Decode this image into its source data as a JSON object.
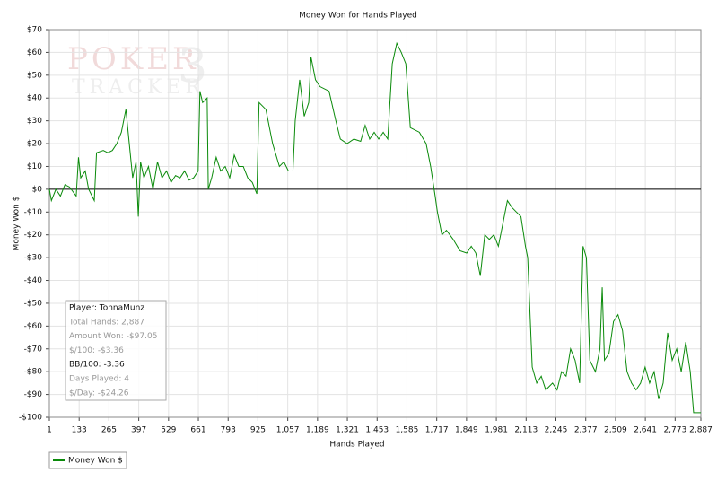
{
  "chart_data": {
    "type": "line",
    "title": "Money Won for Hands Played",
    "x_label": "Hands Played",
    "y_label": "Money Won $",
    "x": [
      1,
      10,
      30,
      50,
      70,
      90,
      120,
      130,
      140,
      160,
      175,
      190,
      200,
      210,
      240,
      260,
      280,
      300,
      320,
      340,
      355,
      370,
      385,
      395,
      405,
      420,
      440,
      460,
      480,
      500,
      520,
      540,
      560,
      580,
      600,
      620,
      640,
      660,
      668,
      680,
      700,
      705,
      720,
      740,
      760,
      780,
      800,
      820,
      840,
      860,
      880,
      900,
      920,
      930,
      960,
      990,
      1020,
      1040,
      1060,
      1080,
      1090,
      1110,
      1130,
      1150,
      1160,
      1180,
      1200,
      1240,
      1270,
      1290,
      1320,
      1350,
      1380,
      1400,
      1420,
      1440,
      1460,
      1480,
      1500,
      1520,
      1540,
      1560,
      1580,
      1600,
      1640,
      1670,
      1690,
      1710,
      1720,
      1740,
      1760,
      1790,
      1820,
      1850,
      1870,
      1890,
      1910,
      1930,
      1950,
      1970,
      1990,
      2010,
      2030,
      2050,
      2070,
      2090,
      2110,
      2120,
      2140,
      2160,
      2180,
      2200,
      2230,
      2250,
      2270,
      2290,
      2310,
      2330,
      2350,
      2365,
      2380,
      2395,
      2420,
      2440,
      2450,
      2460,
      2480,
      2500,
      2520,
      2540,
      2560,
      2580,
      2600,
      2620,
      2640,
      2660,
      2680,
      2700,
      2720,
      2740,
      2760,
      2780,
      2800,
      2820,
      2840,
      2855,
      2887
    ],
    "series": [
      {
        "name": "Money Won $",
        "color": "#0a8a0a",
        "values": [
          0,
          -5,
          0,
          -3,
          2,
          1,
          -3,
          14,
          5,
          8,
          0,
          -3,
          -5,
          16,
          17,
          16,
          17,
          20,
          25,
          35,
          20,
          5,
          12,
          -12,
          12,
          5,
          10,
          0,
          12,
          5,
          8,
          3,
          6,
          5,
          8,
          4,
          5,
          8,
          43,
          38,
          40,
          0,
          5,
          14,
          8,
          10,
          5,
          15,
          10,
          10,
          5,
          3,
          -2,
          38,
          35,
          20,
          10,
          12,
          8,
          8,
          30,
          48,
          32,
          38,
          58,
          48,
          45,
          43,
          30,
          22,
          20,
          22,
          21,
          28,
          22,
          25,
          22,
          25,
          22,
          55,
          64,
          60,
          55,
          27,
          25,
          20,
          10,
          -3,
          -10,
          -20,
          -18,
          -22,
          -27,
          -28,
          -25,
          -28,
          -38,
          -20,
          -22,
          -20,
          -25,
          -15,
          -5,
          -8,
          -10,
          -12,
          -25,
          -30,
          -78,
          -85,
          -82,
          -88,
          -85,
          -88,
          -80,
          -82,
          -70,
          -75,
          -85,
          -25,
          -30,
          -75,
          -80,
          -70,
          -43,
          -75,
          -72,
          -58,
          -55,
          -62,
          -80,
          -85,
          -88,
          -85,
          -78,
          -85,
          -80,
          -92,
          -85,
          -63,
          -75,
          -70,
          -80,
          -67,
          -80,
          -98,
          -98
        ]
      }
    ],
    "xlim": [
      1,
      2887
    ],
    "xticks": [
      1,
      133,
      265,
      397,
      529,
      661,
      793,
      925,
      {
        "value": 1057,
        "label": "1,057"
      },
      {
        "value": 1189,
        "label": "1,189"
      },
      {
        "value": 1321,
        "label": "1,321"
      },
      {
        "value": 1453,
        "label": "1,453"
      },
      {
        "value": 1585,
        "label": "1,585"
      },
      {
        "value": 1717,
        "label": "1,717"
      },
      {
        "value": 1849,
        "label": "1,849"
      },
      {
        "value": 1981,
        "label": "1,981"
      },
      {
        "value": 2113,
        "label": "2,113"
      },
      {
        "value": 2245,
        "label": "2,245"
      },
      {
        "value": 2377,
        "label": "2,377"
      },
      {
        "value": 2509,
        "label": "2,509"
      },
      {
        "value": 2641,
        "label": "2,641"
      },
      {
        "value": 2773,
        "label": "2,773"
      },
      {
        "value": 2887,
        "label": "2,887"
      }
    ],
    "ylim": [
      -100,
      70
    ],
    "yticks": [
      {
        "value": -100,
        "label": "-$100"
      },
      {
        "value": -90,
        "label": "-$90"
      },
      {
        "value": -80,
        "label": "-$80"
      },
      {
        "value": -70,
        "label": "-$70"
      },
      {
        "value": -60,
        "label": "-$60"
      },
      {
        "value": -50,
        "label": "-$50"
      },
      {
        "value": -40,
        "label": "-$40"
      },
      {
        "value": -30,
        "label": "-$30"
      },
      {
        "value": -20,
        "label": "-$20"
      },
      {
        "value": -10,
        "label": "-$10"
      },
      {
        "value": 0,
        "label": "$0"
      },
      {
        "value": 10,
        "label": "$10"
      },
      {
        "value": 20,
        "label": "$20"
      },
      {
        "value": 30,
        "label": "$30"
      },
      {
        "value": 40,
        "label": "$40"
      },
      {
        "value": 50,
        "label": "$50"
      },
      {
        "value": 60,
        "label": "$60"
      },
      {
        "value": 70,
        "label": "$70"
      }
    ],
    "grid": true,
    "zero_line": true,
    "info_box": [
      "Player: TonnaMunz",
      "Total Hands: 2,887",
      "Amount Won: -$97.05",
      "$/100: -$3.36",
      "BB/100: -3.36",
      "Days Played: 4",
      "$/Day: -$24.26"
    ],
    "watermark": [
      "POKER",
      "3",
      "TRACKER"
    ]
  }
}
